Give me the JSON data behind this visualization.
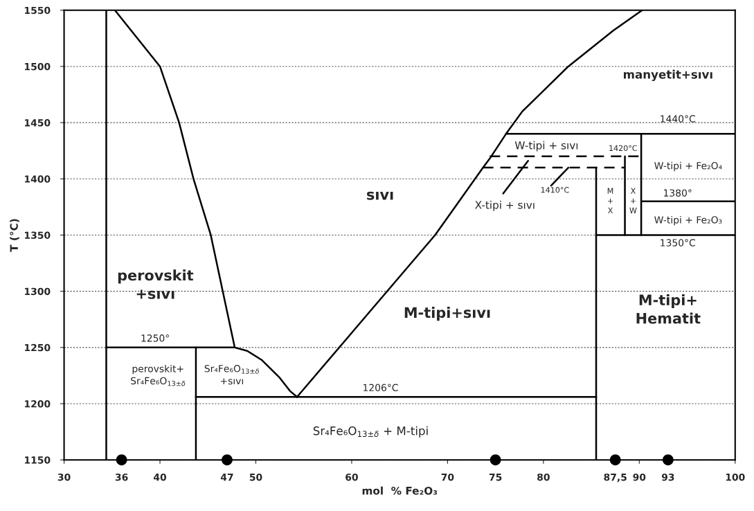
{
  "chart_data": {
    "type": "line",
    "xlabel": "mol  % Fe₂O₃",
    "ylabel": "T (°C)",
    "xlim": [
      30,
      100
    ],
    "ylim": [
      1150,
      1550
    ],
    "xticks": [
      30,
      36,
      40,
      47,
      50,
      60,
      70,
      75,
      80,
      {
        "value": 87.5,
        "label": "87,5"
      },
      90,
      93,
      100
    ],
    "yticks": [
      1150,
      1200,
      1250,
      1300,
      1350,
      1400,
      1450,
      1500,
      1550
    ],
    "grid": "y",
    "series": [
      {
        "color": "#000000",
        "line_style": "solid",
        "x": [
          34.4,
          34.4
        ],
        "values": [
          1150,
          1550
        ]
      },
      {
        "color": "#000000",
        "line_style": "solid",
        "x": [
          35.3,
          40.0,
          42.0,
          43.5,
          45.3,
          47.8
        ],
        "values": [
          1550,
          1500,
          1450,
          1400,
          1350,
          1250
        ]
      },
      {
        "color": "#000000",
        "line_style": "solid",
        "x": [
          34.4,
          47.8,
          49.1,
          50.6,
          52.5,
          53.6,
          54.3
        ],
        "values": [
          1250,
          1250,
          1247,
          1239,
          1223,
          1211,
          1206
        ]
      },
      {
        "color": "#000000",
        "line_style": "solid",
        "x": [
          43.75,
          43.75
        ],
        "values": [
          1150,
          1250
        ]
      },
      {
        "color": "#000000",
        "line_style": "solid",
        "x": [
          43.75,
          85.5
        ],
        "values": [
          1206,
          1206
        ]
      },
      {
        "color": "#000000",
        "line_style": "solid",
        "x": [
          54.3,
          68.7,
          73.7,
          74.4,
          76.1,
          77.8,
          82.6,
          87.3,
          90.3
        ],
        "values": [
          1206,
          1350,
          1410,
          1418,
          1440,
          1460,
          1500,
          1532,
          1550
        ]
      },
      {
        "color": "#000000",
        "line_style": "solid",
        "x": [
          76.1,
          100
        ],
        "values": [
          1440,
          1440
        ]
      },
      {
        "color": "#000000",
        "line_style": "solid",
        "x": [
          90.2,
          90.2
        ],
        "values": [
          1350,
          1440
        ]
      },
      {
        "color": "#000000",
        "line_style": "solid",
        "x": [
          90.2,
          100
        ],
        "values": [
          1380,
          1380
        ]
      },
      {
        "color": "#000000",
        "line_style": "solid",
        "x": [
          85.5,
          100
        ],
        "values": [
          1350,
          1350
        ]
      },
      {
        "color": "#000000",
        "line_style": "solid",
        "x": [
          85.5,
          85.5
        ],
        "values": [
          1150,
          1410
        ]
      },
      {
        "color": "#000000",
        "line_style": "solid",
        "x": [
          88.5,
          88.5
        ],
        "values": [
          1350,
          1420
        ]
      },
      {
        "color": "#000000",
        "line_style": "dashed",
        "x": [
          74.4,
          90.2
        ],
        "values": [
          1420,
          1420
        ]
      },
      {
        "color": "#000000",
        "line_style": "dashed",
        "x": [
          73.7,
          88.5
        ],
        "values": [
          1410,
          1410
        ]
      },
      {
        "color": "#000000",
        "line_style": "solid",
        "x": [
          75.8,
          78.4
        ],
        "values": [
          1387,
          1416
        ]
      },
      {
        "color": "#000000",
        "line_style": "solid",
        "x": [
          80.8,
          82.6
        ],
        "values": [
          1394,
          1410
        ]
      },
      {
        "type": "scatter",
        "color": "#000000",
        "marker": "circle",
        "x": [
          36,
          47,
          75,
          87.5,
          93
        ],
        "values": [
          1150,
          1150,
          1150,
          1150,
          1150
        ]
      }
    ],
    "annotations": [
      "sıvı",
      "perovskit\n+sıvı",
      "perovskit+\nSr₄Fe₆O$_{13±δ}$",
      "Sr₄Fe₆O$_{13±δ}$\n+sıvı",
      "Sr₄Fe₆O$_{13±δ}$ + M-tipi",
      "M-tipi+sıvı",
      "M-tipi+\nHematit",
      "W-tipi + Fe₂O₃",
      "W-tipi + Fe₂O₄",
      "manyetit+sıvı",
      "W-tipi + sıvı",
      "X-tipi + sıvı",
      "M\n+\nX",
      "X\n+\nW",
      {
        "text": "1250°",
        "x": 39.5,
        "y": 1250
      },
      {
        "text": "1206°C",
        "x": 63,
        "y": 1206
      },
      {
        "text": "1350°C",
        "x": 94,
        "y": 1350
      },
      {
        "text": "1380°",
        "x": 94,
        "y": 1380
      },
      {
        "text": "1440°C",
        "x": 94,
        "y": 1440
      },
      {
        "text": "1420°C",
        "x": 88.3,
        "y": 1420
      },
      {
        "text": "1410°C",
        "x": 82.6,
        "y": 1410
      }
    ]
  }
}
